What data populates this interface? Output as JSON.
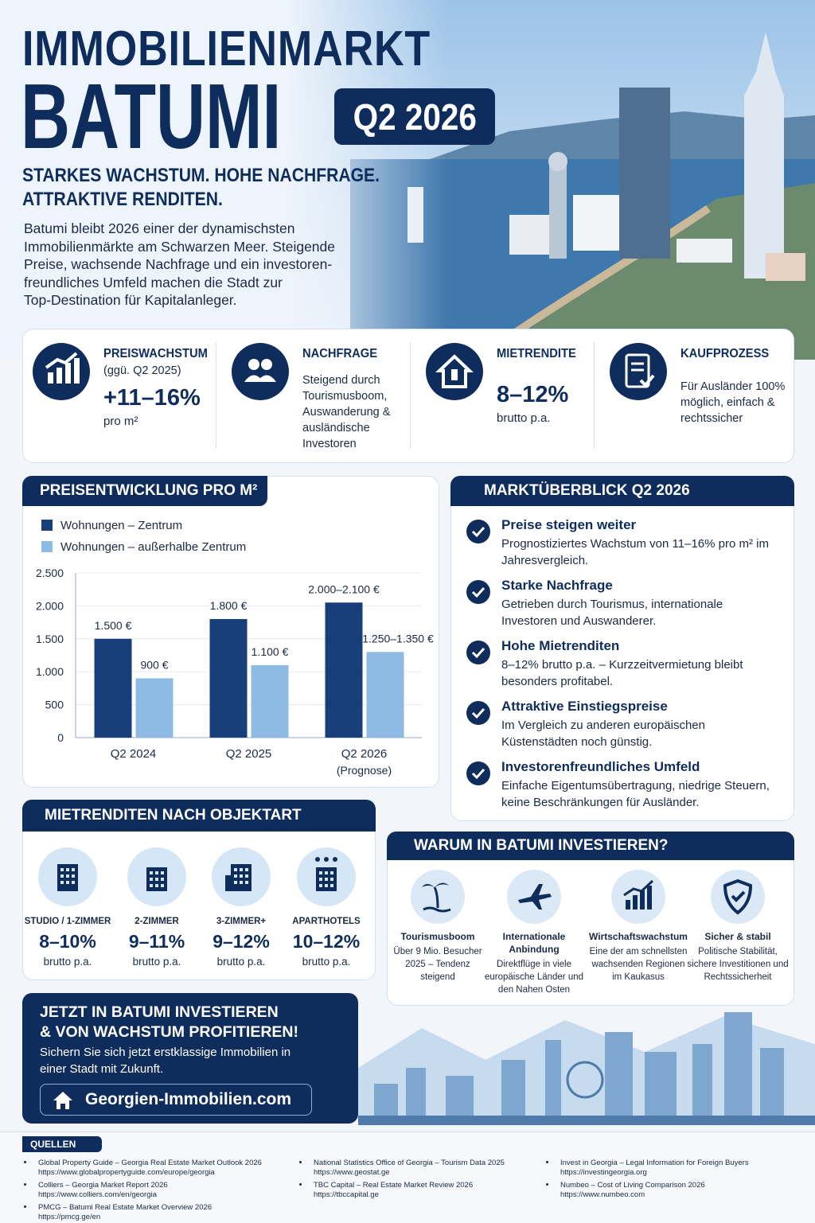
{
  "header": {
    "title_line1": "IMMOBILIENMARKT",
    "title_line2": "BATUMI",
    "badge": "Q2 2026",
    "tagline_line1": "STARKES WACHSTUM. HOHE NACHFRAGE.",
    "tagline_line2": "ATTRAKTIVE RENDITEN.",
    "intro_lines": [
      "Batumi bleibt 2026 einer der dynamischsten",
      "Immobilienmärkte am Schwarzen Meer. Steigende",
      "Preise, wachsende Nachfrage und ein investoren-",
      "freundliches Umfeld machen die Stadt zur",
      "Top-Destination für Kapitalanleger."
    ]
  },
  "kpis": [
    {
      "title": "PREISWACHSTUM",
      "subtitle": "(ggü. Q2 2025)",
      "value": "+11–16%",
      "unit": "pro m²"
    },
    {
      "title": "NACHFRAGE",
      "text": "Steigend durch Tourismusboom, Auswanderung & ausländische Investoren"
    },
    {
      "title": "MIETRENDITE",
      "value": "8–12%",
      "unit": "brutto p.a."
    },
    {
      "title": "KAUFPROZESS",
      "text": "Für Ausländer 100% möglich, einfach & rechtssicher"
    }
  ],
  "chart_data": {
    "type": "bar",
    "title": "PREISENTWICKLUNG PRO M²",
    "categories": [
      "Q2 2024",
      "Q2 2025",
      "Q2 2026"
    ],
    "forecast_note": "(Prognose)",
    "series": [
      {
        "name": "Wohnungen – Zentrum",
        "color": "#173f7a",
        "values": [
          1500,
          1800,
          2050
        ],
        "value_labels": [
          "1.500 €",
          "1.800 €",
          "2.000–2.100 €"
        ]
      },
      {
        "name": "Wohnungen – außerhalbe Zentrum",
        "color": "#8dbbe3",
        "values": [
          900,
          1100,
          1300
        ],
        "value_labels": [
          "900 €",
          "1.100 €",
          "1.250–1.350 €"
        ]
      }
    ],
    "ylim": [
      0,
      2500
    ],
    "yticks": [
      0,
      500,
      {
        "value": 1000,
        "label": "1.000"
      },
      {
        "value": 1500,
        "label": "1.500"
      },
      {
        "value": 2000,
        "label": "2.000"
      },
      {
        "value": 2500,
        "label": "2.500"
      }
    ],
    "grid": true,
    "legend": "top-left"
  },
  "overview": {
    "title": "MARKTÜBERBLICK Q2 2026",
    "items": [
      {
        "heading": "Preise steigen weiter",
        "text": "Prognostiziertes Wachstum von 11–16% pro m² im Jahresvergleich."
      },
      {
        "heading": "Starke Nachfrage",
        "text": "Getrieben durch Tourismus, internationale Investoren und Auswanderer."
      },
      {
        "heading": "Hohe Mietrenditen",
        "text": "8–12% brutto p.a. – Kurzzeitvermietung bleibt besonders profitabel."
      },
      {
        "heading": "Attraktive Einstiegspreise",
        "text": "Im Vergleich zu anderen europäischen Küstenstädten noch günstig."
      },
      {
        "heading": "Investorenfreundliches Umfeld",
        "text": "Einfache Eigentumsübertragung, niedrige Steuern, keine Beschränkungen für Ausländer."
      }
    ]
  },
  "yields": {
    "title": "MIETRENDITEN NACH OBJEKTART",
    "items": [
      {
        "type": "STUDIO / 1-ZIMMER",
        "value": "8–10%",
        "unit": "brutto p.a."
      },
      {
        "type": "2-ZIMMER",
        "value": "9–11%",
        "unit": "brutto p.a."
      },
      {
        "type": "3-ZIMMER+",
        "value": "9–12%",
        "unit": "brutto p.a."
      },
      {
        "type": "APARTHOTELS",
        "value": "10–12%",
        "unit": "brutto p.a."
      }
    ]
  },
  "why": {
    "title": "WARUM IN BATUMI INVESTIEREN?",
    "items": [
      {
        "heading": "Tourismusboom",
        "text": "Über 9 Mio. Besucher 2025 – Tendenz steigend"
      },
      {
        "heading": "Internationale Anbindung",
        "text": "Direktflüge in viele europäische Länder und den Nahen Osten"
      },
      {
        "heading": "Wirtschaftswachstum",
        "text": "Eine der am schnellsten wachsenden Regionen im Kaukasus"
      },
      {
        "heading": "Sicher & stabil",
        "text": "Politische Stabilität, sichere Investitionen und Rechtssicherheit"
      }
    ]
  },
  "cta": {
    "title_line1": "JETZT IN BATUMI INVESTIEREN",
    "title_line2": "& VON WACHSTUM PROFITIEREN!",
    "text": "Sichern Sie sich jetzt erstklassige Immobilien in einer Stadt mit Zukunft.",
    "link": "Georgien-Immobilien.com"
  },
  "sources": {
    "title": "QUELLEN",
    "columns": [
      [
        {
          "name": "Global Property Guide – Georgia Real Estate Market Outlook 2026",
          "url": "https://www.globalpropertyguide.com/europe/georgia"
        },
        {
          "name": "Colliers – Georgia Market Report 2026",
          "url": "https://www.colliers.com/en/georgia"
        },
        {
          "name": "PMCG – Batumi Real Estate Market Overview 2026",
          "url": "https://pmcg.ge/en"
        }
      ],
      [
        {
          "name": "National Statistics Office of Georgia – Tourism Data 2025",
          "url": "https://www.geostat.ge"
        },
        {
          "name": "TBC Capital – Real Estate Market Review 2026",
          "url": "https://tbccapital.ge"
        }
      ],
      [
        {
          "name": "Invest in Georgia – Legal Information for Foreign Buyers",
          "url": "https://investingeorgia.org"
        },
        {
          "name": "Numbeo – Cost of Living Comparison 2026",
          "url": "https://www.numbeo.com"
        }
      ]
    ]
  }
}
